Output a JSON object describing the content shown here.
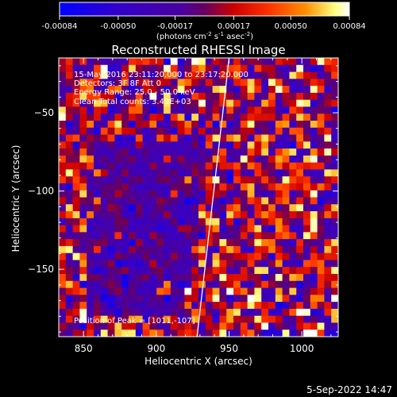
{
  "colorbar": {
    "ticks": [
      "-0.00084",
      "-0.00050",
      "-0.00017",
      "0.00017",
      "0.00050",
      "0.00084"
    ],
    "tick_values": [
      -0.00084,
      -0.0005,
      -0.00017,
      0.00017,
      0.0005,
      0.00084
    ],
    "range": [
      -0.00084,
      0.00084
    ],
    "units_label": "(photons cm",
    "units_sup1": "-2",
    "units_mid1": " s",
    "units_sup2": "-1",
    "units_mid2": " asec",
    "units_sup3": "-2",
    "units_end": ")"
  },
  "chart_data": {
    "type": "heatmap",
    "title": "Reconstructed RHESSI Image",
    "xlabel": "Heliocentric X (arcsec)",
    "ylabel": "Heliocentric Y (arcsec)",
    "xlim": [
      833,
      1025
    ],
    "ylim": [
      -193,
      -15
    ],
    "xticks": [
      850,
      900,
      950,
      1000
    ],
    "yticks": [
      -50,
      -100,
      -150
    ],
    "xtick_labels": [
      "850",
      "900",
      "950",
      "1000"
    ],
    "ytick_labels": [
      "−50",
      "−100",
      "−150"
    ],
    "annotations": [
      "15-May-2016 23:11:20.000 to 23:17:20.000",
      "Detectors: 3F 8F  Att 0",
      "Energy Range: 25.0 - 50.0 keV",
      "Clean     Total counts: 3.49E+03",
      "Position of Peak = [1011,-107]"
    ],
    "limb_line": [
      [
        928,
        -193
      ],
      [
        950,
        -15
      ]
    ],
    "peak_position": [
      1011,
      -107
    ],
    "colormap": [
      "#0000ff",
      "#3d00a8",
      "#5a1aa0",
      "#ff0000",
      "#ff8000",
      "#ffff80",
      "#ffffff"
    ]
  },
  "footer": {
    "date": "5-Sep-2022 14:47"
  }
}
